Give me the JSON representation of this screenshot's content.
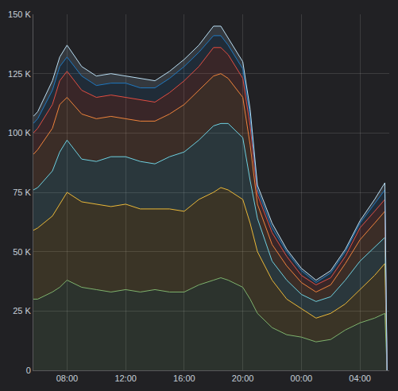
{
  "chart_data": {
    "type": "area",
    "stacked": true,
    "grid": true,
    "x": [
      5.7,
      6,
      7,
      7.5,
      8,
      9,
      10,
      11,
      12,
      13,
      14,
      15,
      16,
      17,
      18,
      18.5,
      19,
      20,
      20.5,
      21,
      22,
      23,
      24,
      25,
      26,
      27,
      28,
      29,
      29.7,
      29.85
    ],
    "xlim": [
      5.7,
      30
    ],
    "xticks": [
      {
        "value": 8,
        "label": "08:00"
      },
      {
        "value": 12,
        "label": "12:00"
      },
      {
        "value": 16,
        "label": "16:00"
      },
      {
        "value": 20,
        "label": "20:00"
      },
      {
        "value": 24,
        "label": "00:00"
      },
      {
        "value": 28,
        "label": "04:00"
      }
    ],
    "ylim": [
      0,
      150000
    ],
    "yticks": [
      0,
      {
        "value": 25000,
        "label": "25 K"
      },
      {
        "value": 50000,
        "label": "50 K"
      },
      {
        "value": 75000,
        "label": "75 K"
      },
      {
        "value": 100000,
        "label": "100 K"
      },
      {
        "value": 125000,
        "label": "125 K"
      },
      {
        "value": 150000,
        "label": "150 K"
      }
    ],
    "series": [
      {
        "color": "#7eb26d",
        "values": [
          30000,
          30000,
          33000,
          35000,
          38000,
          35000,
          34000,
          33000,
          34000,
          33000,
          34000,
          33000,
          33000,
          36000,
          38000,
          39000,
          38000,
          35000,
          30000,
          24000,
          18000,
          15000,
          14000,
          12000,
          13000,
          17000,
          20000,
          22000,
          24000,
          0
        ]
      },
      {
        "color": "#eab839",
        "values": [
          29000,
          30000,
          32000,
          35000,
          37000,
          36000,
          36000,
          36000,
          36000,
          35000,
          34000,
          35000,
          34000,
          36000,
          37000,
          38000,
          38000,
          37000,
          32000,
          26000,
          20000,
          15000,
          12000,
          10000,
          11000,
          11000,
          14000,
          18000,
          21000,
          0
        ]
      },
      {
        "color": "#6ed0e0",
        "values": [
          17000,
          17000,
          19000,
          22000,
          22000,
          18000,
          18000,
          21000,
          20000,
          20000,
          19000,
          22000,
          25000,
          25000,
          28000,
          27000,
          28000,
          26000,
          18000,
          14000,
          8000,
          8000,
          6000,
          7000,
          7000,
          10000,
          12000,
          12000,
          11000,
          0
        ]
      },
      {
        "color": "#ef843c",
        "values": [
          15000,
          16000,
          18000,
          20000,
          18000,
          19000,
          18000,
          17000,
          16000,
          17000,
          18000,
          18000,
          20000,
          21000,
          21000,
          21000,
          19000,
          17000,
          15000,
          6000,
          7000,
          6000,
          5000,
          4000,
          5000,
          7000,
          9000,
          10000,
          11000,
          0
        ]
      },
      {
        "color": "#e24d42",
        "values": [
          9000,
          9000,
          10000,
          10000,
          11000,
          10000,
          9000,
          9000,
          9000,
          9000,
          8000,
          9000,
          10000,
          10000,
          12000,
          11000,
          10000,
          8000,
          8000,
          4000,
          5000,
          4000,
          3000,
          3000,
          3000,
          3000,
          5000,
          5000,
          5000,
          0
        ]
      },
      {
        "color": "#1f78c1",
        "values": [
          4000,
          4000,
          6000,
          6000,
          6000,
          6000,
          5000,
          5000,
          6000,
          5000,
          6000,
          6000,
          6000,
          6000,
          5000,
          5000,
          4000,
          4000,
          4000,
          2000,
          2000,
          2000,
          2000,
          1000,
          2000,
          2000,
          2000,
          3000,
          4000,
          0
        ]
      },
      {
        "color": "#badff4",
        "values": [
          3000,
          3000,
          4000,
          4000,
          5000,
          4000,
          4000,
          4000,
          3000,
          4000,
          3000,
          3000,
          3000,
          3000,
          4000,
          4000,
          3000,
          3000,
          3000,
          2000,
          2000,
          1000,
          1000,
          1000,
          1000,
          1000,
          1000,
          2000,
          3000,
          0
        ]
      }
    ]
  }
}
